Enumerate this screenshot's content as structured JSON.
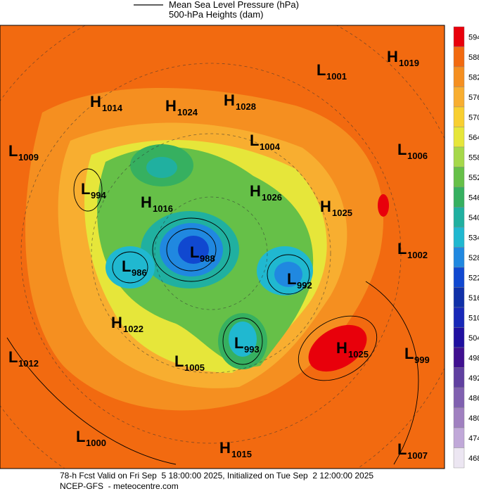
{
  "header": {
    "legend": [
      {
        "label": "Mean Sea Level Pressure (hPa)"
      },
      {
        "label": "500-hPa Heights (dam)"
      }
    ]
  },
  "colorbar": {
    "levels": [
      {
        "value": 594,
        "color": "#e8000b"
      },
      {
        "value": 588,
        "color": "#f26a10"
      },
      {
        "value": 582,
        "color": "#f58f20"
      },
      {
        "value": 576,
        "color": "#f8ae30"
      },
      {
        "value": 570,
        "color": "#f8cf30"
      },
      {
        "value": 564,
        "color": "#e6e63a"
      },
      {
        "value": 558,
        "color": "#a6d84a"
      },
      {
        "value": 552,
        "color": "#66c048"
      },
      {
        "value": 546,
        "color": "#36b060"
      },
      {
        "value": 540,
        "color": "#20b0a0"
      },
      {
        "value": 534,
        "color": "#20b8d0"
      },
      {
        "value": 528,
        "color": "#2088e0"
      },
      {
        "value": 522,
        "color": "#1048d0"
      },
      {
        "value": 516,
        "color": "#1030a8"
      },
      {
        "value": 510,
        "color": "#1828b8"
      },
      {
        "value": 504,
        "color": "#2010a0"
      },
      {
        "value": 498,
        "color": "#401090"
      },
      {
        "value": 492,
        "color": "#6040a0"
      },
      {
        "value": 486,
        "color": "#8060b0"
      },
      {
        "value": 480,
        "color": "#a080c0"
      },
      {
        "value": 474,
        "color": "#c0a8d8"
      },
      {
        "value": 468,
        "color": "#ece6f2"
      }
    ]
  },
  "centers": [
    {
      "kind": "H",
      "pressure": 1019
    },
    {
      "kind": "L",
      "pressure": 1001
    },
    {
      "kind": "H",
      "pressure": 1014
    },
    {
      "kind": "H",
      "pressure": 1024
    },
    {
      "kind": "H",
      "pressure": 1028
    },
    {
      "kind": "L",
      "pressure": 1009
    },
    {
      "kind": "L",
      "pressure": 1004
    },
    {
      "kind": "L",
      "pressure": 1006
    },
    {
      "kind": "L",
      "pressure": 994
    },
    {
      "kind": "H",
      "pressure": 1016
    },
    {
      "kind": "H",
      "pressure": 1026
    },
    {
      "kind": "H",
      "pressure": 1025
    },
    {
      "kind": "L",
      "pressure": 988
    },
    {
      "kind": "L",
      "pressure": 986
    },
    {
      "kind": "L",
      "pressure": 992
    },
    {
      "kind": "L",
      "pressure": 1002
    },
    {
      "kind": "H",
      "pressure": 1022
    },
    {
      "kind": "L",
      "pressure": 993
    },
    {
      "kind": "H",
      "pressure": 1025
    },
    {
      "kind": "L",
      "pressure": 999
    },
    {
      "kind": "L",
      "pressure": 1012
    },
    {
      "kind": "L",
      "pressure": 1005
    },
    {
      "kind": "L",
      "pressure": 1000
    },
    {
      "kind": "H",
      "pressure": 1015
    },
    {
      "kind": "L",
      "pressure": 1007
    }
  ],
  "footer": {
    "line1": "78-h Fcst Valid on Fri Sep  5 18:00:00 2025, Initialized on Tue Sep  2 12:00:00 2025",
    "line2": "NCEP-GFS  - meteocentre.com"
  }
}
